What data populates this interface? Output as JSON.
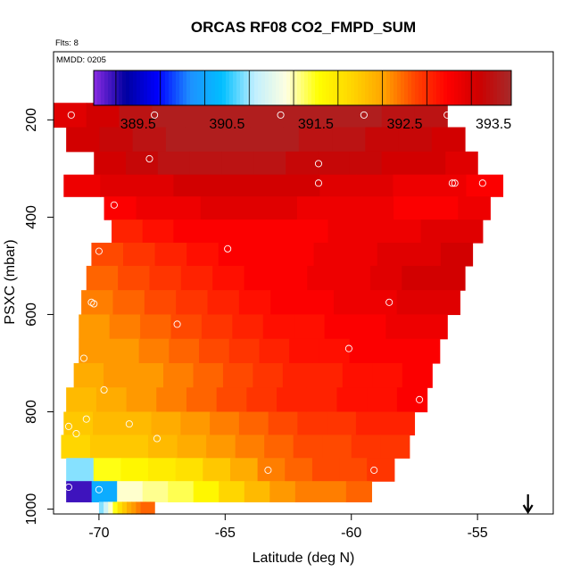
{
  "chart_data": {
    "type": "heatmap",
    "title": "ORCAS RF08 CO2_FMPD_SUM",
    "flights_note": "Flts: 8",
    "date_note": "MMDD: 0205",
    "xlabel": "Latitude (deg N)",
    "ylabel": "PSXC (mbar)",
    "xlim": [
      -71.8,
      -52.0
    ],
    "ylim": [
      1010,
      60
    ],
    "x_ticks": [
      -70,
      -65,
      -60,
      -55
    ],
    "x_tick_labels": [
      "-70",
      "-65",
      "-60",
      "-55"
    ],
    "y_ticks": [
      200,
      400,
      600,
      800,
      1000
    ],
    "y_tick_labels": [
      "200",
      "400",
      "600",
      "800",
      "1000"
    ],
    "colorbar": {
      "range": [
        389.0,
        393.7
      ],
      "ticks": [
        389.5,
        390.5,
        391.5,
        392.5,
        393.5
      ],
      "tick_labels": [
        "389.5",
        "390.5",
        "391.5",
        "392.5",
        "393.5"
      ],
      "colors": [
        "#8a2be2",
        "#0000a0",
        "#0000ff",
        "#1e90ff",
        "#00bfff",
        "#bfefff",
        "#ffffe0",
        "#ffff00",
        "#ffd700",
        "#ffa500",
        "#ff4500",
        "#ff0000",
        "#cd0000",
        "#a52a2a"
      ]
    },
    "rows": [
      {
        "p": 190,
        "x0": -77.8,
        "x1": -56.2,
        "values": [
          393.2,
          393.3,
          393.5,
          393.6,
          393.6,
          393.6,
          393.6,
          393.6,
          393.6,
          393.6,
          393.5,
          393.5
        ]
      },
      {
        "p": 240,
        "x0": -71.3,
        "x1": -55.5,
        "values": [
          393.3,
          393.4,
          393.5,
          393.6,
          393.6,
          393.6,
          393.6,
          393.5,
          393.5,
          393.4,
          393.4,
          393.3
        ]
      },
      {
        "p": 290,
        "x0": -70.2,
        "x1": -55.0,
        "values": [
          393.3,
          393.4,
          393.5,
          393.5,
          393.5,
          393.5,
          393.4,
          393.4,
          393.4,
          393.3,
          393.3,
          393.2
        ]
      },
      {
        "p": 335,
        "x0": -71.4,
        "x1": -54.0,
        "values": [
          393.1,
          393.2,
          393.2,
          393.3,
          393.3,
          393.3,
          393.3,
          393.2,
          393.2,
          393.1,
          393.1,
          393.0
        ]
      },
      {
        "p": 380,
        "x0": -69.8,
        "x1": -54.5,
        "values": [
          393.0,
          393.1,
          393.1,
          393.2,
          393.2,
          393.2,
          393.1,
          393.1,
          393.1,
          393.0,
          393.0,
          393.1
        ]
      },
      {
        "p": 430,
        "x0": -69.5,
        "x1": -54.8,
        "values": [
          392.8,
          392.9,
          393.0,
          393.0,
          393.0,
          393.0,
          393.0,
          393.1,
          393.1,
          393.1,
          393.2,
          393.2
        ]
      },
      {
        "p": 475,
        "x0": -70.3,
        "x1": -55.2,
        "values": [
          392.6,
          392.7,
          392.8,
          392.9,
          393.0,
          393.0,
          393.0,
          393.1,
          393.1,
          393.2,
          393.2,
          393.3
        ]
      },
      {
        "p": 525,
        "x0": -70.5,
        "x1": -55.5,
        "values": [
          392.5,
          392.6,
          392.7,
          392.8,
          392.9,
          393.0,
          393.0,
          393.1,
          393.1,
          393.2,
          393.3,
          393.3
        ]
      },
      {
        "p": 575,
        "x0": -70.7,
        "x1": -55.7,
        "values": [
          392.4,
          392.5,
          392.6,
          392.7,
          392.8,
          392.9,
          393.0,
          393.0,
          393.1,
          393.1,
          393.2,
          393.2
        ]
      },
      {
        "p": 625,
        "x0": -70.8,
        "x1": -56.2,
        "values": [
          392.3,
          392.4,
          392.5,
          392.6,
          392.7,
          392.8,
          392.9,
          392.9,
          393.0,
          393.0,
          393.1,
          393.1
        ]
      },
      {
        "p": 675,
        "x0": -70.8,
        "x1": -56.5,
        "values": [
          392.3,
          392.3,
          392.4,
          392.5,
          392.6,
          392.7,
          392.8,
          392.9,
          392.9,
          393.0,
          393.0,
          393.0
        ]
      },
      {
        "p": 725,
        "x0": -71.0,
        "x1": -56.8,
        "values": [
          392.2,
          392.3,
          392.3,
          392.4,
          392.5,
          392.6,
          392.7,
          392.8,
          392.8,
          392.9,
          392.9,
          393.0
        ]
      },
      {
        "p": 775,
        "x0": -71.3,
        "x1": -57.0,
        "values": [
          392.1,
          392.2,
          392.3,
          392.4,
          392.5,
          392.6,
          392.7,
          392.8,
          392.8,
          392.9,
          392.9,
          393.0
        ]
      },
      {
        "p": 825,
        "x0": -71.4,
        "x1": -57.5,
        "values": [
          392.0,
          392.1,
          392.1,
          392.2,
          392.3,
          392.4,
          392.5,
          392.6,
          392.7,
          392.7,
          392.8,
          392.8
        ]
      },
      {
        "p": 870,
        "x0": -71.5,
        "x1": -57.7,
        "values": [
          391.9,
          392.0,
          392.0,
          392.1,
          392.2,
          392.3,
          392.4,
          392.5,
          392.6,
          392.6,
          392.7,
          392.7
        ]
      },
      {
        "p": 920,
        "x0": -71.3,
        "x1": -58.3,
        "values": [
          390.7,
          391.5,
          391.6,
          391.7,
          391.8,
          392.0,
          392.2,
          392.4,
          392.5,
          392.6,
          392.6,
          392.7
        ]
      },
      {
        "p": 965,
        "x0": -71.3,
        "x1": -59.2,
        "values": [
          389.2,
          390.3,
          391.2,
          391.3,
          391.4,
          391.6,
          391.9,
          392.1,
          392.3,
          392.4,
          392.4,
          392.5
        ]
      },
      {
        "p": 1005,
        "x0": -70.0,
        "x1": -67.8,
        "values": [
          390.7,
          390.9,
          391.2,
          391.5,
          391.8,
          392.0,
          392.2,
          392.3,
          392.4,
          392.5,
          392.5,
          392.5
        ]
      }
    ],
    "points": [
      {
        "x": -71.1,
        "y": 190
      },
      {
        "x": -67.8,
        "y": 190
      },
      {
        "x": -62.8,
        "y": 190
      },
      {
        "x": -59.5,
        "y": 190
      },
      {
        "x": -56.2,
        "y": 190
      },
      {
        "x": -68.0,
        "y": 280
      },
      {
        "x": -61.3,
        "y": 290
      },
      {
        "x": -61.3,
        "y": 330
      },
      {
        "x": -56.0,
        "y": 330
      },
      {
        "x": -54.8,
        "y": 330
      },
      {
        "x": -55.9,
        "y": 330
      },
      {
        "x": -69.4,
        "y": 375
      },
      {
        "x": -64.9,
        "y": 465
      },
      {
        "x": -70.0,
        "y": 470
      },
      {
        "x": -70.3,
        "y": 575
      },
      {
        "x": -70.2,
        "y": 578
      },
      {
        "x": -58.5,
        "y": 575
      },
      {
        "x": -66.9,
        "y": 620
      },
      {
        "x": -70.6,
        "y": 690
      },
      {
        "x": -60.1,
        "y": 670
      },
      {
        "x": -69.8,
        "y": 755
      },
      {
        "x": -57.3,
        "y": 775
      },
      {
        "x": -70.5,
        "y": 815
      },
      {
        "x": -71.2,
        "y": 830
      },
      {
        "x": -68.8,
        "y": 825
      },
      {
        "x": -70.9,
        "y": 845
      },
      {
        "x": -67.7,
        "y": 855
      },
      {
        "x": -63.3,
        "y": 920
      },
      {
        "x": -59.1,
        "y": 920
      },
      {
        "x": -71.2,
        "y": 955
      },
      {
        "x": -70.0,
        "y": 960
      }
    ],
    "north_arrow_x": -53.0
  }
}
